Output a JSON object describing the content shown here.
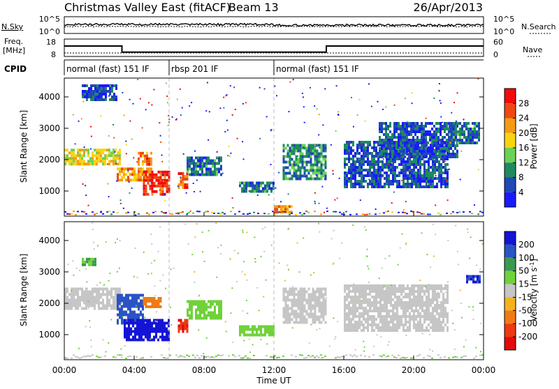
{
  "header": {
    "title": "Christmas Valley East (fitACF)",
    "beam": "Beam 13",
    "date": "26/Apr/2013"
  },
  "labels": {
    "nsky": "N.Sky",
    "nsearch": "N.Search",
    "freq_line1": "Freq.",
    "freq_line2": "[MHz]",
    "nave": "Nave",
    "cpid": "CPID",
    "xaxis": "Time UT",
    "yaxis": "Slant Range [km]"
  },
  "noise_panel": {
    "left_ticks": [
      "10^5",
      "10^0"
    ],
    "right_ticks": [
      "10^5",
      "10^0"
    ]
  },
  "freq_panel": {
    "left_ticks": [
      "18",
      "8"
    ],
    "right_ticks": [
      "60",
      "0"
    ],
    "freq_steps": [
      {
        "start": 0,
        "end": 3.3,
        "freq": 14.0
      },
      {
        "start": 3.3,
        "end": 15.0,
        "freq": 10.5
      },
      {
        "start": 15.0,
        "end": 24.0,
        "freq": 14.0
      }
    ],
    "nave_level": 12
  },
  "cpid_segments": [
    {
      "start": 0,
      "label": "normal (fast) 151 IF"
    },
    {
      "start": 6.0,
      "label": "rbsp 201 IF"
    },
    {
      "start": 12.0,
      "label": "normal (fast) 151 IF"
    }
  ],
  "colorbars": {
    "power": {
      "title": "Power [dB]",
      "ticks": [
        "4",
        "8",
        "12",
        "16",
        "20",
        "24",
        "28"
      ],
      "colors": [
        "#1a1aff",
        "#1f49b5",
        "#1f8a60",
        "#6ad255",
        "#f7d411",
        "#f59a13",
        "#ef4812",
        "#f20a0a"
      ]
    },
    "velocity": {
      "title_main": "Velocity [m s",
      "title_sup": "-1",
      "title_end": "]",
      "ticks": [
        "200",
        "100",
        "50",
        "15",
        "-15",
        "-50",
        "-100",
        "-200"
      ],
      "colors": [
        "#1414d6",
        "#2a53c5",
        "#3a9a52",
        "#6fd23a",
        "#c6c6c6",
        "#f4b31c",
        "#f07a14",
        "#ec3a12",
        "#e30a0a"
      ]
    }
  },
  "chart_data": [
    {
      "type": "heatmap",
      "name": "power",
      "xlabel": "",
      "ylabel": "Slant Range [km]",
      "xlim": [
        0,
        24
      ],
      "ylim": [
        200,
        4600
      ],
      "yticks": [
        1000,
        2000,
        3000,
        4000
      ],
      "regions": [
        {
          "t0": 0.0,
          "t1": 3.2,
          "r0": 1850,
          "r1": 2350,
          "value": 18
        },
        {
          "t0": 3.0,
          "t1": 5.0,
          "r0": 1350,
          "r1": 1750,
          "value": 22
        },
        {
          "t0": 4.2,
          "t1": 5.0,
          "r0": 1850,
          "r1": 2250,
          "value": 24
        },
        {
          "t0": 4.5,
          "t1": 6.0,
          "r0": 900,
          "r1": 1650,
          "value": 28
        },
        {
          "t0": 6.5,
          "t1": 7.0,
          "r0": 1100,
          "r1": 1600,
          "value": 26
        },
        {
          "t0": 7.0,
          "t1": 9.0,
          "r0": 1500,
          "r1": 2100,
          "value": 8
        },
        {
          "t0": 10.0,
          "t1": 12.0,
          "r0": 1000,
          "r1": 1300,
          "value": 8
        },
        {
          "t0": 12.5,
          "t1": 15.0,
          "r0": 1400,
          "r1": 2500,
          "value": 10
        },
        {
          "t0": 16.0,
          "t1": 22.0,
          "r0": 1100,
          "r1": 2600,
          "value": 6
        },
        {
          "t0": 18.0,
          "t1": 22.5,
          "r0": 2100,
          "r1": 3200,
          "value": 6
        },
        {
          "t0": 22.0,
          "t1": 23.8,
          "r0": 2500,
          "r1": 3200,
          "value": 8
        },
        {
          "t0": 1.0,
          "t1": 3.0,
          "r0": 3900,
          "r1": 4400,
          "value": 6
        },
        {
          "t0": 12.0,
          "t1": 13.0,
          "r0": 350,
          "r1": 550,
          "value": 22
        }
      ]
    },
    {
      "type": "heatmap",
      "name": "velocity",
      "xlabel": "Time UT",
      "ylabel": "Slant Range [km]",
      "xlim": [
        0,
        24
      ],
      "ylim": [
        200,
        4600
      ],
      "xticks": [
        "00:00",
        "04:00",
        "08:00",
        "12:00",
        "16:00",
        "20:00",
        "00:00"
      ],
      "yticks": [
        1000,
        2000,
        3000,
        4000
      ],
      "regions": [
        {
          "t0": 0.0,
          "t1": 3.2,
          "r0": 1850,
          "r1": 2500,
          "value": 0
        },
        {
          "t0": 3.0,
          "t1": 4.5,
          "r0": 1350,
          "r1": 2300,
          "value": 150
        },
        {
          "t0": 3.4,
          "t1": 6.0,
          "r0": 850,
          "r1": 1500,
          "value": 250
        },
        {
          "t0": 4.5,
          "t1": 5.5,
          "r0": 1900,
          "r1": 2200,
          "value": -60
        },
        {
          "t0": 6.5,
          "t1": 7.0,
          "r0": 1100,
          "r1": 1500,
          "value": -200
        },
        {
          "t0": 7.0,
          "t1": 9.0,
          "r0": 1500,
          "r1": 2100,
          "value": 40
        },
        {
          "t0": 10.0,
          "t1": 12.0,
          "r0": 1000,
          "r1": 1300,
          "value": 30
        },
        {
          "t0": 12.5,
          "t1": 15.0,
          "r0": 1400,
          "r1": 2500,
          "value": 0
        },
        {
          "t0": 16.0,
          "t1": 22.0,
          "r0": 1100,
          "r1": 2600,
          "value": 0
        },
        {
          "t0": 23.0,
          "t1": 23.8,
          "r0": 2700,
          "r1": 2900,
          "value": 200
        },
        {
          "t0": 1.0,
          "t1": 1.8,
          "r0": 3250,
          "r1": 3450,
          "value": 50
        }
      ]
    }
  ]
}
